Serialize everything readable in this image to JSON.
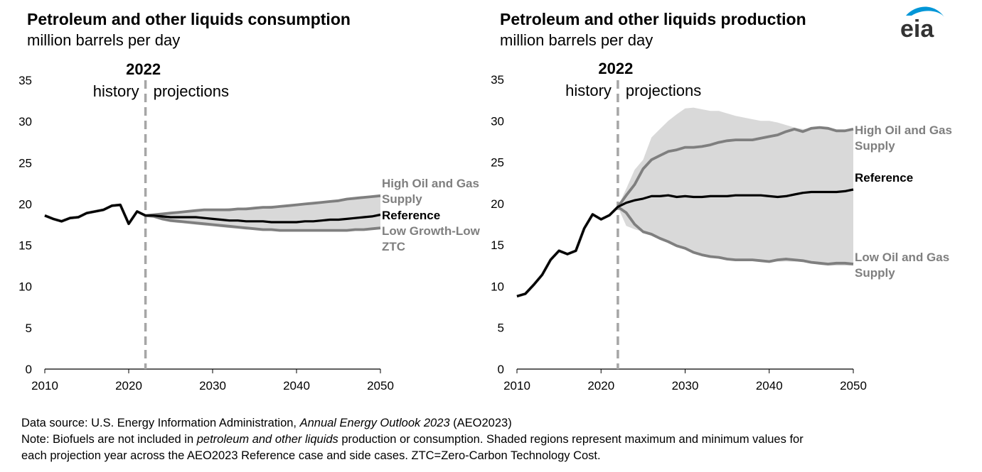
{
  "brand": {
    "logo_text": "eia",
    "accent_color": "#0096d7",
    "logo_text_color": "#333333"
  },
  "colors": {
    "reference": "#000000",
    "case": "#7f7f7f",
    "band": "#d9d9d9",
    "divider": "#a6a6a6",
    "axis": "#000000"
  },
  "footer": {
    "source_prefix": "Data source: U.S. Energy Information Administration, ",
    "source_italic": "Annual Energy Outlook 2023",
    "source_suffix": " (AEO2023)",
    "note_prefix": "Note: Biofuels are not included in ",
    "note_italic": "petroleum and other liquids",
    "note_suffix": " production or consumption. Shaded regions represent maximum and minimum values for",
    "note_line2": "each projection year across the AEO2023 Reference case and side cases. ZTC=Zero-Carbon Technology Cost."
  },
  "chart_data": [
    {
      "type": "line",
      "title": "Petroleum and other liquids consumption",
      "subtitle": "million barrels per day",
      "divider_year": 2022,
      "divider_label": "2022",
      "history_label": "history",
      "projections_label": "projections",
      "xlim": [
        2010,
        2050
      ],
      "ylim": [
        0,
        35
      ],
      "xticks": [
        2010,
        2020,
        2030,
        2040,
        2050
      ],
      "yticks": [
        0,
        5,
        10,
        15,
        20,
        25,
        30,
        35
      ],
      "series": [
        {
          "name": "Reference",
          "label_lines": [
            "Reference"
          ],
          "role": "reference",
          "x": [
            2010,
            2011,
            2012,
            2013,
            2014,
            2015,
            2016,
            2017,
            2018,
            2019,
            2020,
            2021,
            2022,
            2023,
            2024,
            2025,
            2026,
            2027,
            2028,
            2029,
            2030,
            2031,
            2032,
            2033,
            2034,
            2035,
            2036,
            2037,
            2038,
            2039,
            2040,
            2041,
            2042,
            2043,
            2044,
            2045,
            2046,
            2047,
            2048,
            2049,
            2050
          ],
          "y": [
            18.6,
            18.2,
            17.9,
            18.3,
            18.4,
            18.9,
            19.1,
            19.3,
            19.8,
            19.9,
            17.6,
            19.1,
            18.6,
            18.6,
            18.5,
            18.4,
            18.4,
            18.4,
            18.4,
            18.3,
            18.2,
            18.1,
            18.0,
            18.0,
            17.9,
            17.9,
            17.9,
            17.8,
            17.8,
            17.8,
            17.8,
            17.9,
            17.9,
            18.0,
            18.1,
            18.1,
            18.2,
            18.3,
            18.4,
            18.5,
            18.7
          ]
        },
        {
          "name": "High Oil and Gas Supply",
          "label_lines": [
            "High Oil and Gas",
            "Supply"
          ],
          "role": "case",
          "x": [
            2010,
            2011,
            2012,
            2013,
            2014,
            2015,
            2016,
            2017,
            2018,
            2019,
            2020,
            2021,
            2022,
            2023,
            2024,
            2025,
            2026,
            2027,
            2028,
            2029,
            2030,
            2031,
            2032,
            2033,
            2034,
            2035,
            2036,
            2037,
            2038,
            2039,
            2040,
            2041,
            2042,
            2043,
            2044,
            2045,
            2046,
            2047,
            2048,
            2049,
            2050
          ],
          "y": [
            18.6,
            18.2,
            17.9,
            18.3,
            18.4,
            18.9,
            19.1,
            19.3,
            19.8,
            19.9,
            17.6,
            19.1,
            18.6,
            18.7,
            18.8,
            18.9,
            19.0,
            19.1,
            19.2,
            19.3,
            19.3,
            19.3,
            19.3,
            19.4,
            19.4,
            19.5,
            19.6,
            19.6,
            19.7,
            19.8,
            19.9,
            20.0,
            20.1,
            20.2,
            20.3,
            20.4,
            20.6,
            20.7,
            20.8,
            20.9,
            21.0
          ]
        },
        {
          "name": "Low Growth-Low ZTC",
          "label_lines": [
            "Low Growth-Low",
            "ZTC"
          ],
          "role": "case",
          "x": [
            2010,
            2011,
            2012,
            2013,
            2014,
            2015,
            2016,
            2017,
            2018,
            2019,
            2020,
            2021,
            2022,
            2023,
            2024,
            2025,
            2026,
            2027,
            2028,
            2029,
            2030,
            2031,
            2032,
            2033,
            2034,
            2035,
            2036,
            2037,
            2038,
            2039,
            2040,
            2041,
            2042,
            2043,
            2044,
            2045,
            2046,
            2047,
            2048,
            2049,
            2050
          ],
          "y": [
            18.6,
            18.2,
            17.9,
            18.3,
            18.4,
            18.9,
            19.1,
            19.3,
            19.8,
            19.9,
            17.6,
            19.1,
            18.6,
            18.5,
            18.2,
            18.0,
            17.9,
            17.8,
            17.7,
            17.6,
            17.5,
            17.4,
            17.3,
            17.2,
            17.1,
            17.0,
            16.9,
            16.9,
            16.8,
            16.8,
            16.8,
            16.8,
            16.8,
            16.8,
            16.8,
            16.8,
            16.8,
            16.9,
            16.9,
            17.0,
            17.1
          ]
        }
      ],
      "band": {
        "x": [
          2022,
          2023,
          2024,
          2025,
          2026,
          2027,
          2028,
          2029,
          2030,
          2031,
          2032,
          2033,
          2034,
          2035,
          2036,
          2037,
          2038,
          2039,
          2040,
          2041,
          2042,
          2043,
          2044,
          2045,
          2046,
          2047,
          2048,
          2049,
          2050
        ],
        "max": [
          18.6,
          18.8,
          18.9,
          19.0,
          19.1,
          19.2,
          19.3,
          19.4,
          19.4,
          19.4,
          19.5,
          19.5,
          19.6,
          19.6,
          19.7,
          19.8,
          19.8,
          19.9,
          20.0,
          20.1,
          20.2,
          20.3,
          20.4,
          20.5,
          20.6,
          20.7,
          20.8,
          20.9,
          21.0
        ],
        "min": [
          18.6,
          18.4,
          18.0,
          17.8,
          17.7,
          17.6,
          17.5,
          17.4,
          17.3,
          17.2,
          17.1,
          17.0,
          16.9,
          16.9,
          16.8,
          16.8,
          16.7,
          16.7,
          16.7,
          16.7,
          16.7,
          16.7,
          16.7,
          16.7,
          16.7,
          16.8,
          16.8,
          16.9,
          17.0
        ]
      }
    },
    {
      "type": "line",
      "title": "Petroleum and other liquids production",
      "subtitle": "million barrels per day",
      "divider_year": 2022,
      "divider_label": "2022",
      "history_label": "history",
      "projections_label": "projections",
      "xlim": [
        2010,
        2050
      ],
      "ylim": [
        0,
        35
      ],
      "xticks": [
        2010,
        2020,
        2030,
        2040,
        2050
      ],
      "yticks": [
        0,
        5,
        10,
        15,
        20,
        25,
        30,
        35
      ],
      "series": [
        {
          "name": "Reference",
          "label_lines": [
            "Reference"
          ],
          "role": "reference",
          "x": [
            2010,
            2011,
            2012,
            2013,
            2014,
            2015,
            2016,
            2017,
            2018,
            2019,
            2020,
            2021,
            2022,
            2023,
            2024,
            2025,
            2026,
            2027,
            2028,
            2029,
            2030,
            2031,
            2032,
            2033,
            2034,
            2035,
            2036,
            2037,
            2038,
            2039,
            2040,
            2041,
            2042,
            2043,
            2044,
            2045,
            2046,
            2047,
            2048,
            2049,
            2050
          ],
          "y": [
            8.8,
            9.1,
            10.2,
            11.4,
            13.2,
            14.3,
            13.9,
            14.3,
            17.0,
            18.7,
            18.1,
            18.6,
            19.6,
            20.1,
            20.4,
            20.6,
            20.9,
            20.9,
            21.0,
            20.8,
            20.9,
            20.8,
            20.8,
            20.9,
            20.9,
            20.9,
            21.0,
            21.0,
            21.0,
            21.0,
            20.9,
            20.8,
            20.9,
            21.1,
            21.3,
            21.4,
            21.4,
            21.4,
            21.4,
            21.5,
            21.7
          ]
        },
        {
          "name": "High Oil and Gas Supply",
          "label_lines": [
            "High Oil and Gas",
            "Supply"
          ],
          "role": "case",
          "x": [
            2010,
            2011,
            2012,
            2013,
            2014,
            2015,
            2016,
            2017,
            2018,
            2019,
            2020,
            2021,
            2022,
            2023,
            2024,
            2025,
            2026,
            2027,
            2028,
            2029,
            2030,
            2031,
            2032,
            2033,
            2034,
            2035,
            2036,
            2037,
            2038,
            2039,
            2040,
            2041,
            2042,
            2043,
            2044,
            2045,
            2046,
            2047,
            2048,
            2049,
            2050
          ],
          "y": [
            8.8,
            9.1,
            10.2,
            11.4,
            13.2,
            14.3,
            13.9,
            14.3,
            17.0,
            18.7,
            18.1,
            18.6,
            19.6,
            21.0,
            22.3,
            24.2,
            25.3,
            25.8,
            26.3,
            26.5,
            26.8,
            26.8,
            26.9,
            27.1,
            27.4,
            27.6,
            27.7,
            27.7,
            27.7,
            27.9,
            28.1,
            28.3,
            28.7,
            29.0,
            28.7,
            29.1,
            29.2,
            29.1,
            28.8,
            28.8,
            29.0
          ]
        },
        {
          "name": "Low Oil and Gas Supply",
          "label_lines": [
            "Low Oil and Gas",
            "Supply"
          ],
          "role": "case",
          "x": [
            2010,
            2011,
            2012,
            2013,
            2014,
            2015,
            2016,
            2017,
            2018,
            2019,
            2020,
            2021,
            2022,
            2023,
            2024,
            2025,
            2026,
            2027,
            2028,
            2029,
            2030,
            2031,
            2032,
            2033,
            2034,
            2035,
            2036,
            2037,
            2038,
            2039,
            2040,
            2041,
            2042,
            2043,
            2044,
            2045,
            2046,
            2047,
            2048,
            2049,
            2050
          ],
          "y": [
            8.8,
            9.1,
            10.2,
            11.4,
            13.2,
            14.3,
            13.9,
            14.3,
            17.0,
            18.7,
            18.1,
            18.6,
            19.6,
            18.9,
            17.5,
            16.6,
            16.3,
            15.8,
            15.4,
            14.9,
            14.6,
            14.1,
            13.8,
            13.6,
            13.5,
            13.3,
            13.2,
            13.2,
            13.2,
            13.1,
            13.0,
            13.2,
            13.3,
            13.2,
            13.1,
            12.9,
            12.8,
            12.7,
            12.8,
            12.8,
            12.7
          ]
        }
      ],
      "band": {
        "x": [
          2022,
          2023,
          2024,
          2025,
          2026,
          2027,
          2028,
          2029,
          2030,
          2031,
          2032,
          2033,
          2034,
          2035,
          2036,
          2037,
          2038,
          2039,
          2040,
          2041,
          2042,
          2043,
          2044,
          2045,
          2046,
          2047,
          2048,
          2049,
          2050
        ],
        "max": [
          19.6,
          21.8,
          24.1,
          25.3,
          28.0,
          29.0,
          30.0,
          30.8,
          31.5,
          31.6,
          31.4,
          31.2,
          31.2,
          30.9,
          30.6,
          30.4,
          30.2,
          30.0,
          30.0,
          29.8,
          29.5,
          29.2,
          29.0,
          29.1,
          29.2,
          29.1,
          28.8,
          28.8,
          29.0
        ],
        "min": [
          19.6,
          17.3,
          16.9,
          16.6,
          16.3,
          15.8,
          15.4,
          14.9,
          14.6,
          14.1,
          13.8,
          13.6,
          13.5,
          13.3,
          13.2,
          13.2,
          13.2,
          13.1,
          13.0,
          13.0,
          13.0,
          13.0,
          13.0,
          12.8,
          12.6,
          12.5,
          12.5,
          12.5,
          12.5
        ]
      }
    }
  ]
}
